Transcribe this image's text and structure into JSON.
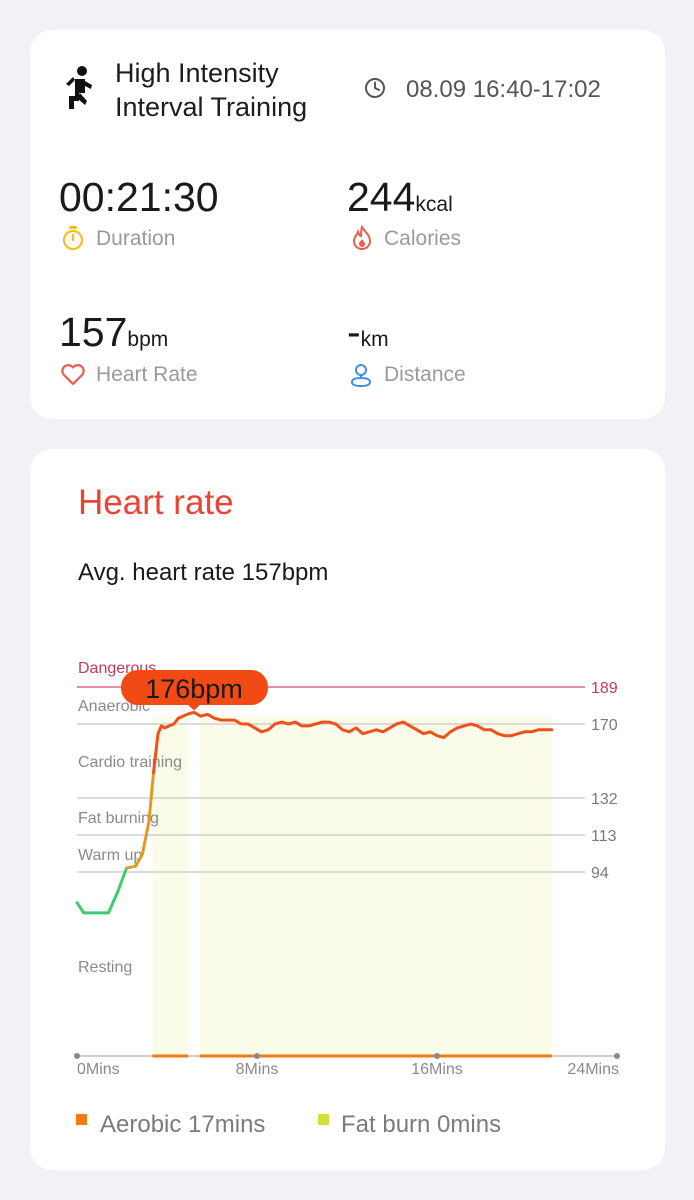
{
  "summary": {
    "title_line1": "High Intensity",
    "title_line2": "Interval Training",
    "time_range": "08.09 16:40-17:02",
    "duration": {
      "value": "00:21:30",
      "label": "Duration"
    },
    "calories": {
      "value": "244",
      "unit": "kcal",
      "label": "Calories"
    },
    "heart_rate": {
      "value": "157",
      "unit": "bpm",
      "label": "Heart Rate"
    },
    "distance": {
      "value": "-",
      "unit": "km",
      "label": "Distance"
    }
  },
  "hr_card": {
    "title": "Heart rate",
    "avg": "Avg. heart rate 157bpm",
    "tooltip": "176bpm",
    "legend": [
      {
        "label": "Aerobic 17mins",
        "color": "#f57a10"
      },
      {
        "label": "Fat burn 0mins",
        "color": "#d3e03a"
      }
    ]
  },
  "colors": {
    "accent_red": "#e84536",
    "dangerous_line": "#d64a6b",
    "tooltip_bg": "#f24a14",
    "line_resting": "#3dcd70",
    "line_warm": "#e29a20",
    "line_intense": "#f0501a",
    "fill_zone": "#fafbe9",
    "duration_icon": "#f2c018",
    "calories_icon": "#ef5b4c",
    "heart_icon": "#ef5b4c",
    "distance_icon": "#3f8fe0"
  },
  "icons": {
    "activity": "running-person-icon",
    "time": "clock-icon",
    "duration": "stopwatch-icon",
    "calories": "flame-icon",
    "heart_rate": "heart-icon",
    "distance": "location-pin-icon"
  },
  "chart_data": {
    "type": "line",
    "title": "Heart rate",
    "xlabel": "",
    "ylabel": "",
    "x_unit": "min",
    "xlim": [
      0,
      24
    ],
    "x_ticks": [
      "0Mins",
      "8Mins",
      "16Mins",
      "24Mins"
    ],
    "y_reference_lines": [
      189,
      170,
      132,
      113,
      94
    ],
    "zones": [
      "Dangerous",
      "Anaerobic",
      "Cardio training",
      "Fat burning",
      "Warm up",
      "Resting"
    ],
    "ylim": [
      40,
      200
    ],
    "peak": {
      "x": 5.2,
      "y": 176,
      "label": "176bpm"
    },
    "series": [
      {
        "x": [
          0,
          0.3,
          0.6,
          1.0,
          1.4,
          1.8,
          2.2,
          2.6,
          2.9,
          3.2,
          3.4,
          3.6,
          3.75,
          3.9,
          4.1,
          4.3,
          4.5,
          4.7,
          4.9,
          5.2,
          5.5,
          5.8,
          6.1,
          6.4,
          6.7,
          7.0,
          7.3,
          7.6,
          7.9,
          8.2,
          8.5,
          8.8,
          9.1,
          9.4,
          9.7,
          10.0,
          10.3,
          10.6,
          10.9,
          11.2,
          11.5,
          11.8,
          12.1,
          12.4,
          12.7,
          13.0,
          13.3,
          13.6,
          13.9,
          14.2,
          14.5,
          14.8,
          15.1,
          15.4,
          15.7,
          16.0,
          16.3,
          16.6,
          16.9,
          17.2,
          17.5,
          17.8,
          18.1,
          18.4,
          18.7,
          19.0,
          19.3,
          19.6,
          19.9,
          20.2,
          20.5,
          20.8,
          21.1
        ],
        "y": [
          85,
          82,
          82,
          82,
          82,
          88,
          96,
          97,
          103,
          120,
          145,
          165,
          169,
          168,
          169,
          170,
          173,
          174,
          175,
          176,
          174,
          175,
          173,
          172,
          172,
          172,
          170,
          170,
          168,
          166,
          167,
          170,
          171,
          170,
          171,
          169,
          169,
          170,
          171,
          171,
          170,
          167,
          166,
          168,
          165,
          166,
          167,
          166,
          168,
          170,
          171,
          169,
          167,
          165,
          166,
          164,
          163,
          166,
          168,
          169,
          170,
          169,
          167,
          167,
          165,
          164,
          164,
          165,
          166,
          166,
          167,
          167,
          167
        ]
      }
    ]
  }
}
